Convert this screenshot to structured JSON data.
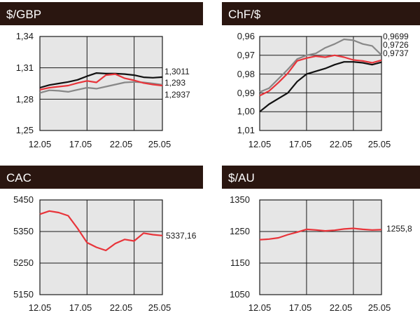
{
  "chart_data": [
    {
      "type": "line",
      "title": "$/GBP",
      "x": [
        "12.05",
        "13.05",
        "14.05",
        "15.05",
        "16.05",
        "17.05",
        "18.05",
        "19.05",
        "20.05",
        "21.05",
        "22.05",
        "23.05",
        "24.05",
        "25.05"
      ],
      "xticks": [
        "12.05",
        "17.05",
        "22.05",
        "25.05"
      ],
      "yticks": [
        "1,34",
        "1,31",
        "1,28",
        "1,25"
      ],
      "ylim": [
        1.25,
        1.34
      ],
      "reversed": false,
      "grid": true,
      "series": [
        {
          "name": "",
          "color": "#111111",
          "values": [
            1.291,
            1.2935,
            1.295,
            1.2965,
            1.2985,
            1.302,
            1.305,
            1.3045,
            1.3045,
            1.304,
            1.303,
            1.301,
            1.3005,
            1.3011
          ]
        },
        {
          "name": "",
          "color": "#888888",
          "values": [
            1.286,
            1.2885,
            1.288,
            1.287,
            1.289,
            1.291,
            1.29,
            1.292,
            1.294,
            1.296,
            1.2965,
            1.296,
            1.295,
            1.2937
          ]
        },
        {
          "name": "",
          "color": "#e8343a",
          "values": [
            1.289,
            1.291,
            1.292,
            1.293,
            1.2955,
            1.2975,
            1.296,
            1.303,
            1.304,
            1.3,
            1.298,
            1.2955,
            1.294,
            1.293
          ]
        }
      ],
      "end_labels": [
        "1,3011",
        "1,293",
        "1,2937"
      ]
    },
    {
      "type": "line",
      "title": "ChF/$",
      "x": [
        "12.05",
        "13.05",
        "14.05",
        "15.05",
        "16.05",
        "17.05",
        "18.05",
        "19.05",
        "20.05",
        "21.05",
        "22.05",
        "23.05",
        "24.05",
        "25.05"
      ],
      "xticks": [
        "12.05",
        "17.05",
        "22.05",
        "25.05"
      ],
      "yticks": [
        "0,96",
        "0,97",
        "0,98",
        "0,99",
        "1,00",
        "1,01"
      ],
      "ylim": [
        0.96,
        1.01
      ],
      "reversed": true,
      "grid": true,
      "series": [
        {
          "name": "",
          "color": "#111111",
          "values": [
            1.0,
            0.996,
            0.993,
            0.99,
            0.984,
            0.98,
            0.9785,
            0.977,
            0.975,
            0.9735,
            0.9735,
            0.974,
            0.975,
            0.9737
          ]
        },
        {
          "name": "",
          "color": "#888888",
          "values": [
            0.9895,
            0.9875,
            0.9825,
            0.9775,
            0.972,
            0.97,
            0.969,
            0.966,
            0.964,
            0.9615,
            0.962,
            0.964,
            0.965,
            0.9699
          ]
        },
        {
          "name": "",
          "color": "#e8343a",
          "values": [
            0.9915,
            0.989,
            0.9845,
            0.9795,
            0.973,
            0.9715,
            0.9705,
            0.971,
            0.97,
            0.971,
            0.9725,
            0.973,
            0.974,
            0.9726
          ]
        }
      ],
      "end_labels": [
        "0,9699",
        "0,9726",
        "0,9737"
      ]
    },
    {
      "type": "line",
      "title": "CAC",
      "x": [
        "12.05",
        "13.05",
        "14.05",
        "15.05",
        "16.05",
        "17.05",
        "18.05",
        "19.05",
        "20.05",
        "21.05",
        "22.05",
        "23.05",
        "24.05",
        "25.05"
      ],
      "xticks": [
        "12.05",
        "17.05",
        "22.05",
        "25.05"
      ],
      "yticks": [
        "5450",
        "5350",
        "5250",
        "5150"
      ],
      "ylim": [
        5150,
        5450
      ],
      "reversed": false,
      "grid": true,
      "series": [
        {
          "name": "",
          "color": "#e8343a",
          "values": [
            5405,
            5415,
            5410,
            5400,
            5360,
            5315,
            5300,
            5290,
            5312,
            5325,
            5320,
            5345,
            5340,
            5337.16
          ]
        }
      ],
      "end_labels": [
        "5337,16"
      ]
    },
    {
      "type": "line",
      "title": "$/AU",
      "x": [
        "12.05",
        "13.05",
        "14.05",
        "15.05",
        "16.05",
        "17.05",
        "18.05",
        "19.05",
        "20.05",
        "21.05",
        "22.05",
        "23.05",
        "24.05",
        "25.05"
      ],
      "xticks": [
        "12.05",
        "17.05",
        "22.05",
        "25.05"
      ],
      "yticks": [
        "1350",
        "1250",
        "1150",
        "1050"
      ],
      "ylim": [
        1050,
        1350
      ],
      "reversed": false,
      "grid": true,
      "series": [
        {
          "name": "",
          "color": "#e8343a",
          "values": [
            1224,
            1226,
            1230,
            1240,
            1248,
            1257,
            1255,
            1252,
            1254,
            1258,
            1260,
            1257,
            1255,
            1255.8
          ]
        }
      ],
      "end_labels": [
        "1255,8"
      ]
    }
  ]
}
